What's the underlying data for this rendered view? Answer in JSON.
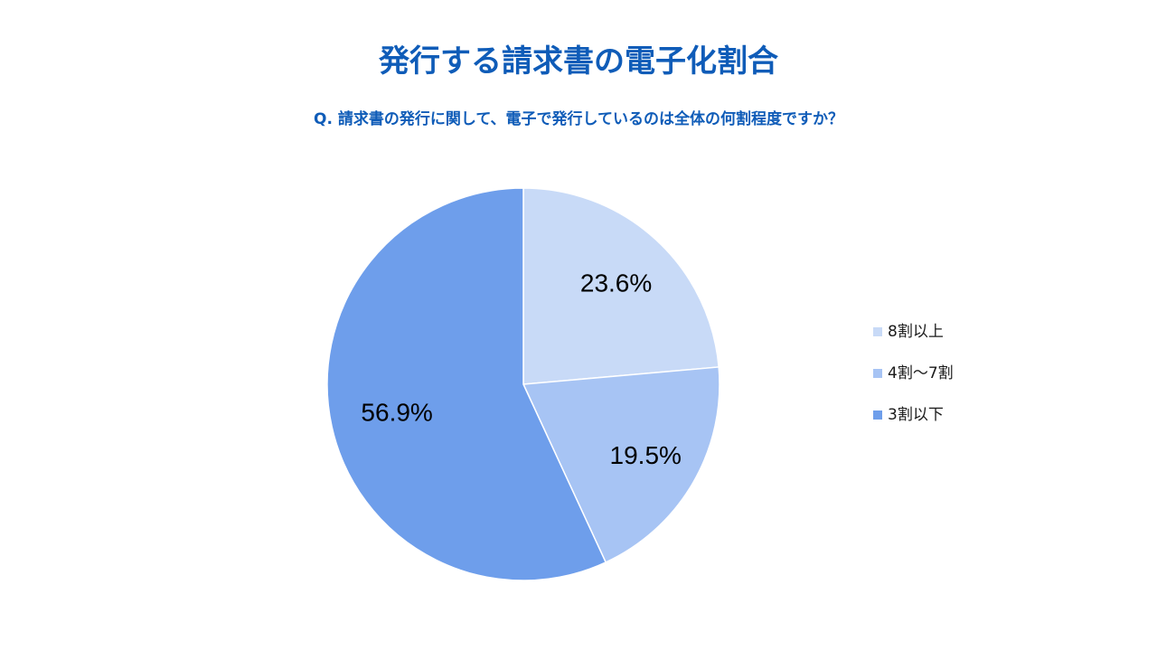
{
  "colors": {
    "heading": "#0f5cb8",
    "slice_1": "#c8daf7",
    "slice_2": "#a7c4f4",
    "slice_3": "#6e9eeb",
    "slice_edge": "#ffffff",
    "data_label": "#000000"
  },
  "chart_data": {
    "type": "pie",
    "title": "発行する請求書の電子化割合",
    "subtitle": "Q. 請求書の発行に関して、電子で発行しているのは全体の何割程度ですか？",
    "legend_position": "right",
    "slices": [
      {
        "label": "8割以上",
        "value": 23.6,
        "display": "23.6%"
      },
      {
        "label": "4割〜7割",
        "value": 19.5,
        "display": "19.5%"
      },
      {
        "label": "3割以下",
        "value": 56.9,
        "display": "56.9%"
      }
    ]
  }
}
